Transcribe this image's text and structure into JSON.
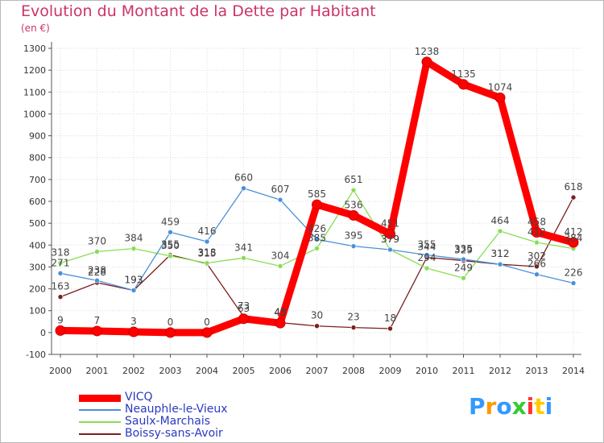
{
  "title": "Evolution du Montant de la Dette par Habitant",
  "unit": "(en €)",
  "logo": {
    "text": "Proxiti",
    "colors": [
      "#3399ff",
      "#ff9900",
      "#3399ff",
      "#33cc33",
      "#ff3333",
      "#ffcc00",
      "#3399ff"
    ]
  },
  "chart_data": {
    "type": "line",
    "x": [
      "2000",
      "2001",
      "2002",
      "2003",
      "2004",
      "2005",
      "2006",
      "2007",
      "2008",
      "2009",
      "2010",
      "2011",
      "2012",
      "2013",
      "2014"
    ],
    "ylim": [
      -100,
      1300
    ],
    "yticks": [
      -100,
      0,
      100,
      200,
      300,
      400,
      500,
      600,
      700,
      800,
      900,
      1000,
      1100,
      1200,
      1300
    ],
    "grid": true,
    "legend_position": "bottom-left",
    "series": [
      {
        "name": "VICQ",
        "color": "#ff0000",
        "values": [
          9,
          7,
          3,
          0,
          0,
          63,
          43,
          585,
          536,
          451,
          1238,
          1135,
          1074,
          458,
          412
        ]
      },
      {
        "name": "Neauphle-le-Vieux",
        "color": "#4a90d9",
        "values": [
          271,
          238,
          193,
          459,
          416,
          660,
          607,
          426,
          395,
          379,
          355,
          335,
          312,
          266,
          226
        ]
      },
      {
        "name": "Saulx-Marchais",
        "color": "#88dd55",
        "values": [
          318,
          370,
          384,
          350,
          318,
          341,
          304,
          385,
          651,
          379,
          294,
          249,
          464,
          412,
          384
        ]
      },
      {
        "name": "Boissy-sans-Avoir",
        "color": "#7a1f1f",
        "values": [
          163,
          228,
          193,
          355,
          315,
          73,
          45,
          30,
          23,
          18,
          344,
          329,
          312,
          302,
          618
        ]
      }
    ]
  }
}
